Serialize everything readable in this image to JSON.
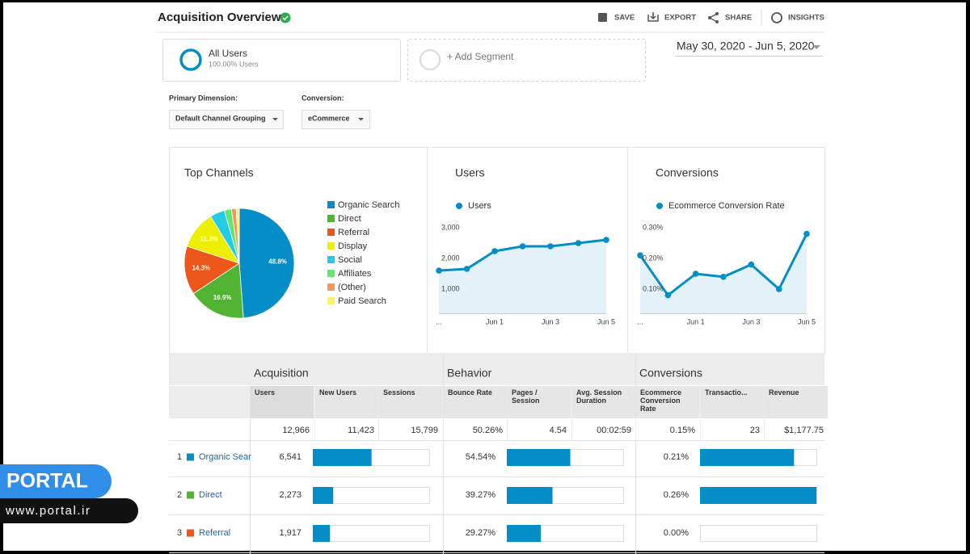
{
  "header": {
    "title": "Acquisition Overview",
    "actions": [
      "SAVE",
      "EXPORT",
      "SHARE",
      "INSIGHTS"
    ]
  },
  "segments": {
    "name": "All Users",
    "share": "100.00% Users",
    "add": "+ Add Segment"
  },
  "date_range": "May 30, 2020 - Jun 5, 2020",
  "dimensions": {
    "primary_label": "Primary Dimension:",
    "primary_value": "Default Channel Grouping",
    "conversion_label": "Conversion:",
    "conversion_value": "eCommerce"
  },
  "chart_data": [
    {
      "type": "pie",
      "title": "Top Channels",
      "categories": [
        "Organic Search",
        "Direct",
        "Referral",
        "Display",
        "Social",
        "Affiliates",
        "(Other)",
        "Paid Search"
      ],
      "values": [
        48.8,
        16.9,
        14.3,
        11.3,
        4.3,
        2.1,
        1.4,
        0.9
      ],
      "value_labels": [
        "48.8%",
        "16.9%",
        "14.3%",
        "11.3%",
        null,
        null,
        null,
        null
      ],
      "colors": [
        "#058dc7",
        "#50b432",
        "#ed561b",
        "#edef00",
        "#24cbe5",
        "#64e572",
        "#ff9655",
        "#fff263"
      ]
    },
    {
      "type": "line",
      "title": "Users",
      "categories": [
        "...",
        null,
        "Jun 1",
        null,
        "Jun 3",
        null,
        "Jun 5"
      ],
      "series": [
        {
          "name": "Users",
          "color": "#058dc7",
          "values": [
            1605,
            1658,
            2237,
            2395,
            2395,
            2500,
            2605
          ]
        }
      ],
      "ylim": [
        200,
        3300
      ],
      "yticks": [
        {
          "value": 1000,
          "label": "1,000"
        },
        {
          "value": 2000,
          "label": "2,000"
        },
        {
          "value": 3000,
          "label": "3,000"
        }
      ],
      "grid": false
    },
    {
      "type": "line",
      "title": "Conversions",
      "categories": [
        "...",
        null,
        "Jun 1",
        null,
        "Jun 3",
        null,
        "Jun 5"
      ],
      "series": [
        {
          "name": "Ecommerce Conversion Rate",
          "color": "#058dc7",
          "values": [
            0.21,
            0.08,
            0.15,
            0.14,
            0.18,
            0.1,
            0.28
          ]
        }
      ],
      "ylim": [
        0.02,
        0.33
      ],
      "yticks": [
        {
          "value": 0.1,
          "label": "0.10%"
        },
        {
          "value": 0.2,
          "label": "0.20%"
        },
        {
          "value": 0.3,
          "label": "0.30%"
        }
      ],
      "grid": false
    }
  ],
  "table": {
    "groups": [
      "Acquisition",
      "Behavior",
      "Conversions"
    ],
    "columns": [
      "Users",
      "New Users",
      "Sessions",
      "Bounce Rate",
      "Pages / Session",
      "Avg. Session Duration",
      "Ecommerce Conversion Rate",
      "Transactio...",
      "Revenue"
    ],
    "totals": [
      {
        "value": 12966,
        "label": "12,966"
      },
      "11,423",
      "15,799",
      "50.26%",
      "4.54",
      "00:02:59",
      "0.15%",
      "23",
      "$1,177.75"
    ],
    "rows": [
      {
        "rank": "1",
        "channel": "Organic Sear",
        "color": "#058dc7",
        "users": {
          "value": 6541,
          "label": "6,541"
        },
        "bounce_rate": {
          "value": 54.54,
          "label": "54.54%"
        },
        "conversion_rate": {
          "value": 0.21,
          "label": "0.21%"
        }
      },
      {
        "rank": "2",
        "channel": "Direct",
        "color": "#50b432",
        "users": {
          "value": 2273,
          "label": "2,273"
        },
        "bounce_rate": {
          "value": 39.27,
          "label": "39.27%"
        },
        "conversion_rate": {
          "value": 0.26,
          "label": "0.26%"
        }
      },
      {
        "rank": "3",
        "channel": "Referral",
        "color": "#ed561b",
        "users": {
          "value": 1917,
          "label": "1,917"
        },
        "bounce_rate": {
          "value": 29.27,
          "label": "29.27%"
        },
        "conversion_rate": {
          "value": 0.0,
          "label": "0.00%"
        }
      }
    ]
  },
  "watermark": {
    "brand": "PORTAL",
    "url": "www.portal.ir"
  }
}
